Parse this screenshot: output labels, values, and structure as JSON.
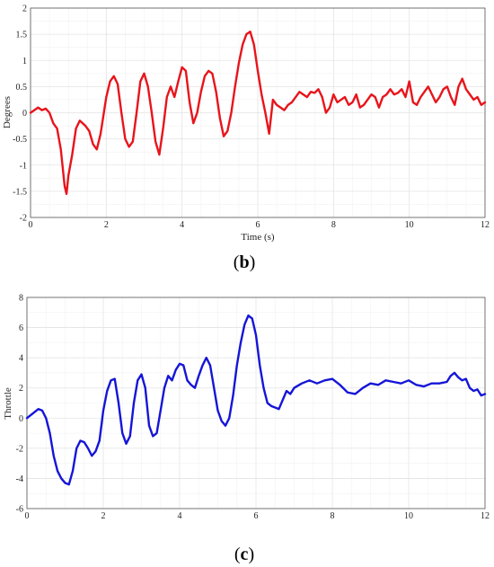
{
  "chart_data": [
    {
      "type": "line",
      "caption_open": "(",
      "caption_letter": "b",
      "caption_close": ")",
      "xlabel": "Time (s)",
      "ylabel": "Degrees",
      "xlim": [
        0,
        12
      ],
      "ylim": [
        -2,
        2
      ],
      "xticks": [
        "0",
        "2",
        "4",
        "6",
        "8",
        "10",
        "12"
      ],
      "yticks": [
        "2",
        "1.5",
        "1",
        "0.5",
        "0",
        "-0.5",
        "-1",
        "-1.5",
        "-2"
      ],
      "grid": true,
      "color": "#e8141b",
      "series": [
        {
          "x": [
            0,
            0.1,
            0.2,
            0.3,
            0.4,
            0.5,
            0.6,
            0.7,
            0.8,
            0.9,
            0.95,
            1.0,
            1.1,
            1.2,
            1.3,
            1.45,
            1.55,
            1.65,
            1.75,
            1.85,
            2.0,
            2.1,
            2.2,
            2.3,
            2.4,
            2.5,
            2.6,
            2.7,
            2.8,
            2.9,
            3.0,
            3.1,
            3.2,
            3.3,
            3.4,
            3.5,
            3.6,
            3.7,
            3.8,
            3.9,
            4.0,
            4.1,
            4.2,
            4.3,
            4.4,
            4.5,
            4.6,
            4.7,
            4.8,
            4.9,
            5.0,
            5.1,
            5.2,
            5.3,
            5.4,
            5.5,
            5.6,
            5.7,
            5.8,
            5.9,
            6.0,
            6.1,
            6.2,
            6.3,
            6.4,
            6.5,
            6.6,
            6.7,
            6.8,
            6.9,
            7.0,
            7.1,
            7.2,
            7.3,
            7.4,
            7.5,
            7.6,
            7.7,
            7.8,
            7.9,
            8.0,
            8.1,
            8.2,
            8.3,
            8.4,
            8.5,
            8.6,
            8.7,
            8.8,
            8.9,
            9.0,
            9.1,
            9.2,
            9.3,
            9.4,
            9.5,
            9.6,
            9.7,
            9.8,
            9.9,
            10.0,
            10.1,
            10.2,
            10.3,
            10.4,
            10.5,
            10.6,
            10.7,
            10.8,
            10.9,
            11.0,
            11.1,
            11.2,
            11.3,
            11.4,
            11.5,
            11.6,
            11.7,
            11.8,
            11.9,
            12.0
          ],
          "values": [
            0.0,
            0.05,
            0.1,
            0.05,
            0.08,
            0.0,
            -0.2,
            -0.3,
            -0.7,
            -1.4,
            -1.55,
            -1.2,
            -0.8,
            -0.3,
            -0.15,
            -0.25,
            -0.35,
            -0.6,
            -0.7,
            -0.4,
            0.3,
            0.6,
            0.7,
            0.55,
            0.0,
            -0.5,
            -0.65,
            -0.55,
            0.0,
            0.6,
            0.75,
            0.5,
            0.0,
            -0.55,
            -0.8,
            -0.3,
            0.3,
            0.5,
            0.3,
            0.6,
            0.87,
            0.8,
            0.2,
            -0.2,
            0.0,
            0.4,
            0.7,
            0.8,
            0.75,
            0.4,
            -0.1,
            -0.45,
            -0.35,
            0.0,
            0.5,
            0.95,
            1.3,
            1.5,
            1.55,
            1.3,
            0.8,
            0.35,
            0.0,
            -0.4,
            0.25,
            0.15,
            0.1,
            0.05,
            0.15,
            0.2,
            0.3,
            0.4,
            0.35,
            0.3,
            0.4,
            0.38,
            0.45,
            0.3,
            0.0,
            0.1,
            0.35,
            0.2,
            0.25,
            0.3,
            0.15,
            0.2,
            0.35,
            0.1,
            0.15,
            0.25,
            0.35,
            0.3,
            0.1,
            0.3,
            0.35,
            0.45,
            0.35,
            0.38,
            0.45,
            0.3,
            0.6,
            0.2,
            0.15,
            0.3,
            0.4,
            0.5,
            0.35,
            0.2,
            0.3,
            0.45,
            0.5,
            0.3,
            0.15,
            0.5,
            0.65,
            0.45,
            0.35,
            0.25,
            0.3,
            0.15,
            0.2
          ]
        }
      ]
    },
    {
      "type": "line",
      "caption_open": "(",
      "caption_letter": "c",
      "caption_close": ")",
      "xlabel": "",
      "ylabel": "Throttle",
      "xlim": [
        0,
        12
      ],
      "ylim": [
        -6,
        8
      ],
      "xticks": [
        "0",
        "2",
        "4",
        "6",
        "8",
        "10",
        "12"
      ],
      "yticks": [
        "8",
        "6",
        "4",
        "2",
        "0",
        "-2",
        "-4",
        "-6"
      ],
      "grid": true,
      "color": "#1515d8",
      "series": [
        {
          "x": [
            0,
            0.1,
            0.2,
            0.3,
            0.4,
            0.5,
            0.6,
            0.7,
            0.8,
            0.9,
            1.0,
            1.1,
            1.2,
            1.3,
            1.4,
            1.5,
            1.6,
            1.7,
            1.8,
            1.9,
            2.0,
            2.1,
            2.2,
            2.3,
            2.4,
            2.5,
            2.6,
            2.7,
            2.8,
            2.9,
            3.0,
            3.1,
            3.2,
            3.3,
            3.4,
            3.5,
            3.6,
            3.7,
            3.8,
            3.9,
            4.0,
            4.1,
            4.2,
            4.3,
            4.4,
            4.5,
            4.6,
            4.7,
            4.8,
            4.9,
            5.0,
            5.1,
            5.2,
            5.3,
            5.4,
            5.5,
            5.6,
            5.7,
            5.8,
            5.9,
            6.0,
            6.1,
            6.2,
            6.3,
            6.4,
            6.5,
            6.6,
            6.7,
            6.8,
            6.9,
            7.0,
            7.2,
            7.4,
            7.6,
            7.8,
            8.0,
            8.2,
            8.4,
            8.6,
            8.8,
            9.0,
            9.2,
            9.4,
            9.6,
            9.8,
            10.0,
            10.2,
            10.4,
            10.6,
            10.8,
            11.0,
            11.1,
            11.2,
            11.3,
            11.4,
            11.5,
            11.6,
            11.7,
            11.8,
            11.9,
            12.0
          ],
          "values": [
            0.0,
            0.2,
            0.4,
            0.6,
            0.5,
            0.0,
            -1.0,
            -2.5,
            -3.5,
            -4.0,
            -4.3,
            -4.4,
            -3.5,
            -2.0,
            -1.5,
            -1.6,
            -2.0,
            -2.5,
            -2.2,
            -1.5,
            0.5,
            1.8,
            2.5,
            2.6,
            1.0,
            -1.0,
            -1.7,
            -1.2,
            1.0,
            2.5,
            2.9,
            2.0,
            -0.5,
            -1.2,
            -1.0,
            0.5,
            2.0,
            2.8,
            2.5,
            3.2,
            3.6,
            3.5,
            2.5,
            2.2,
            2.0,
            2.8,
            3.5,
            4.0,
            3.5,
            2.0,
            0.5,
            -0.2,
            -0.5,
            0.0,
            1.5,
            3.5,
            5.0,
            6.2,
            6.8,
            6.6,
            5.5,
            3.5,
            2.0,
            1.0,
            0.8,
            0.7,
            0.6,
            1.2,
            1.8,
            1.6,
            2.0,
            2.3,
            2.5,
            2.3,
            2.5,
            2.6,
            2.2,
            1.7,
            1.6,
            2.0,
            2.3,
            2.2,
            2.5,
            2.4,
            2.3,
            2.5,
            2.2,
            2.1,
            2.3,
            2.3,
            2.4,
            2.8,
            3.0,
            2.7,
            2.5,
            2.6,
            2.0,
            1.8,
            1.9,
            1.5,
            1.6
          ]
        }
      ]
    }
  ]
}
